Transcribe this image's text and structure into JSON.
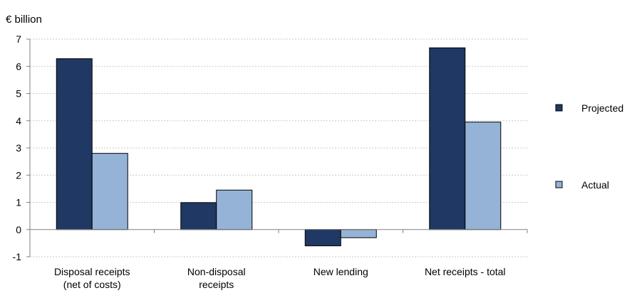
{
  "chart_data": {
    "type": "bar",
    "title": "",
    "ylabel": "€ billion",
    "xlabel": "",
    "ylim": [
      -1,
      7
    ],
    "yticks": [
      -1,
      0,
      1,
      2,
      3,
      4,
      5,
      6,
      7
    ],
    "grid": true,
    "legend_position": "right",
    "categories": [
      [
        "Disposal receipts",
        "(net of costs)"
      ],
      [
        "Non-disposal",
        "receipts"
      ],
      [
        "New lending"
      ],
      [
        "Net receipts - total"
      ]
    ],
    "series": [
      {
        "name": "Projected",
        "color": "#1f3864",
        "values": [
          6.28,
          0.99,
          -0.6,
          6.68
        ]
      },
      {
        "name": "Actual",
        "color": "#95b3d7",
        "values": [
          2.8,
          1.45,
          -0.3,
          3.95
        ]
      }
    ]
  }
}
